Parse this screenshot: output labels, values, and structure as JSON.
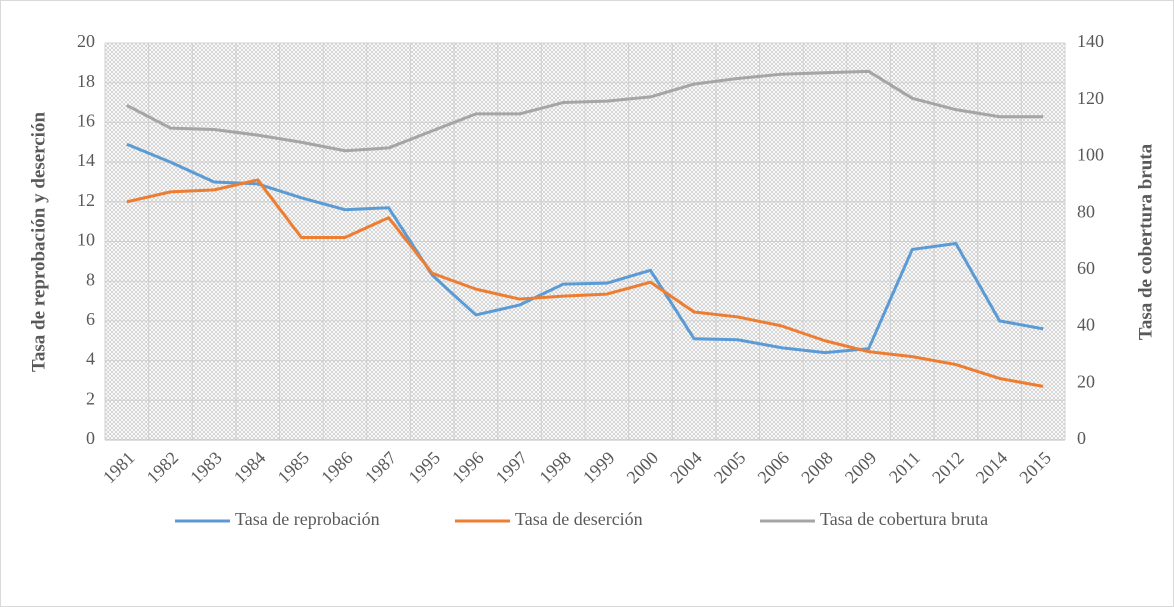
{
  "chart_data": {
    "type": "line",
    "y_label": "Tasa de reprobación y deserción",
    "y2_label": "Tasa de cobertura bruta",
    "categories": [
      "1981",
      "1982",
      "1983",
      "1984",
      "1985",
      "1986",
      "1987",
      "1995",
      "1996",
      "1997",
      "1998",
      "1999",
      "2000",
      "2004",
      "2005",
      "2006",
      "2008",
      "2009",
      "2011",
      "2012",
      "2014",
      "2015"
    ],
    "series": [
      {
        "name": "Tasa de reprobación",
        "color": "#5b9bd5",
        "values": [
          14.9,
          14.0,
          13.0,
          12.9,
          12.2,
          11.6,
          11.7,
          8.3,
          6.3,
          6.8,
          7.85,
          7.9,
          8.55,
          5.1,
          5.05,
          4.65,
          4.4,
          4.6,
          9.6,
          9.9,
          6.0,
          5.6
        ]
      },
      {
        "name": "Tasa de deserción",
        "color": "#ed7d31",
        "values": [
          12.0,
          12.5,
          12.6,
          13.1,
          10.2,
          10.2,
          11.2,
          8.4,
          7.6,
          7.1,
          7.25,
          7.35,
          7.95,
          6.45,
          6.2,
          5.75,
          5.0,
          4.45,
          4.2,
          3.8,
          3.1,
          2.7
        ]
      },
      {
        "name": "Tasa de cobertura bruta",
        "color": "#a5a5a5",
        "axis": "y2",
        "values": [
          118,
          110,
          109.5,
          107.5,
          105,
          102,
          103,
          109,
          115,
          115,
          119,
          119.5,
          121,
          125.5,
          127.5,
          129,
          129.5,
          130,
          120.5,
          116.5,
          114,
          114
        ]
      }
    ],
    "ylim": [
      0,
      20
    ],
    "yticks": [
      0,
      2,
      4,
      6,
      8,
      10,
      12,
      14,
      16,
      18,
      20
    ],
    "y2lim": [
      0,
      140
    ],
    "y2ticks": [
      0,
      20,
      40,
      60,
      80,
      100,
      120,
      140
    ],
    "grid": true,
    "legend": "bottom"
  }
}
